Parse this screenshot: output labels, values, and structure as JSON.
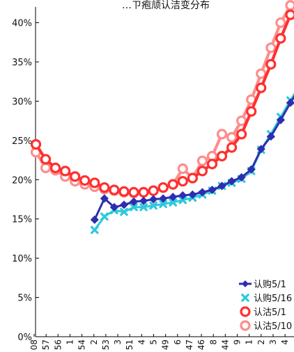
{
  "chart_data": {
    "type": "line",
    "title": "…ㄗ疱颃认洁变分布",
    "xlabel": "",
    "ylabel": "",
    "ylim": [
      0,
      42
    ],
    "yticks": [
      "0%",
      "5%",
      "10%",
      "15%",
      "20%",
      "25%",
      "30%",
      "35%",
      "40%"
    ],
    "ytick_values": [
      0,
      5,
      10,
      15,
      20,
      25,
      30,
      35,
      40
    ],
    "x_tick_labels": [
      "08",
      "57",
      "56",
      "1",
      "54",
      "2",
      "53",
      "3",
      "51",
      "4",
      "5",
      "49",
      "6",
      "47",
      "46",
      "8",
      "44",
      "9",
      "1",
      "2",
      "3",
      "4"
    ],
    "grid": false,
    "legend_position": "bottom-right",
    "series": [
      {
        "name": "认购5/1",
        "color": "#2e2eb0",
        "marker": "diamond",
        "start_index": 6,
        "values": [
          14.9,
          17.6,
          16.5,
          16.8,
          17.2,
          17.3,
          17.5,
          17.6,
          17.8,
          18.0,
          18.1,
          18.4,
          18.7,
          19.2,
          19.8,
          20.3,
          21.3,
          23.9,
          25.5,
          27.6,
          29.8,
          31.8
        ]
      },
      {
        "name": "认购5/16",
        "color": "#2ec8dc",
        "marker": "x",
        "start_index": 6,
        "values": [
          13.6,
          15.3,
          16.1,
          15.9,
          16.5,
          16.5,
          16.7,
          16.9,
          17.1,
          17.4,
          17.7,
          18.1,
          18.6,
          19.2,
          19.6,
          20.1,
          21.1,
          23.8,
          25.8,
          28.0,
          30.1,
          32.1
        ]
      },
      {
        "name": "认沽5/1",
        "color": "#ff3030",
        "marker": "circle",
        "start_index": 0,
        "values": [
          24.5,
          22.6,
          21.5,
          21.1,
          20.4,
          19.9,
          19.6,
          19.0,
          18.7,
          18.5,
          18.4,
          18.4,
          18.6,
          19.0,
          19.4,
          19.8,
          20.2,
          21.1,
          22.0,
          23.0,
          24.1,
          25.8,
          28.7,
          31.7,
          34.7,
          38.0,
          41.0
        ]
      },
      {
        "name": "认沽5/10",
        "color": "#ff8c8c",
        "marker": "circle",
        "start_index": 0,
        "values": [
          23.5,
          21.5,
          21.2,
          20.4,
          19.8,
          19.4,
          19.1,
          18.8,
          18.6,
          18.4,
          18.3,
          18.4,
          18.6,
          19.0,
          19.4,
          21.4,
          20.2,
          22.4,
          23.0,
          25.8,
          25.4,
          27.5,
          30.2,
          33.5,
          36.8,
          40.0,
          42.2
        ]
      }
    ]
  }
}
